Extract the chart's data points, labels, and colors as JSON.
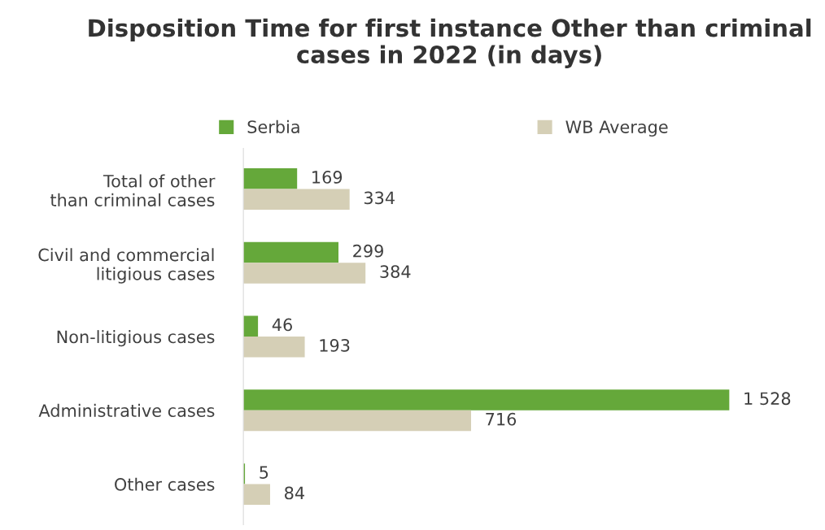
{
  "chart_data": {
    "type": "bar",
    "orientation": "horizontal",
    "title": "Disposition Time for first instance Other than criminal cases in 2022 (in days)",
    "categories": [
      "Total of other than criminal cases",
      "Civil and commercial litigious cases",
      "Non-litigious cases",
      "Administrative cases",
      "Other cases"
    ],
    "series": [
      {
        "name": "Serbia",
        "color": "#65a83a",
        "values": [
          169,
          299,
          46,
          1528,
          5
        ],
        "value_labels": [
          "169",
          "299",
          "46",
          "1 528",
          "5"
        ]
      },
      {
        "name": "WB Average",
        "color": "#d5cfb6",
        "values": [
          334,
          384,
          193,
          716,
          84
        ],
        "value_labels": [
          "334",
          "384",
          "193",
          "716",
          "84"
        ]
      }
    ],
    "tick_labels": "y",
    "legend": "top",
    "grid": false
  }
}
